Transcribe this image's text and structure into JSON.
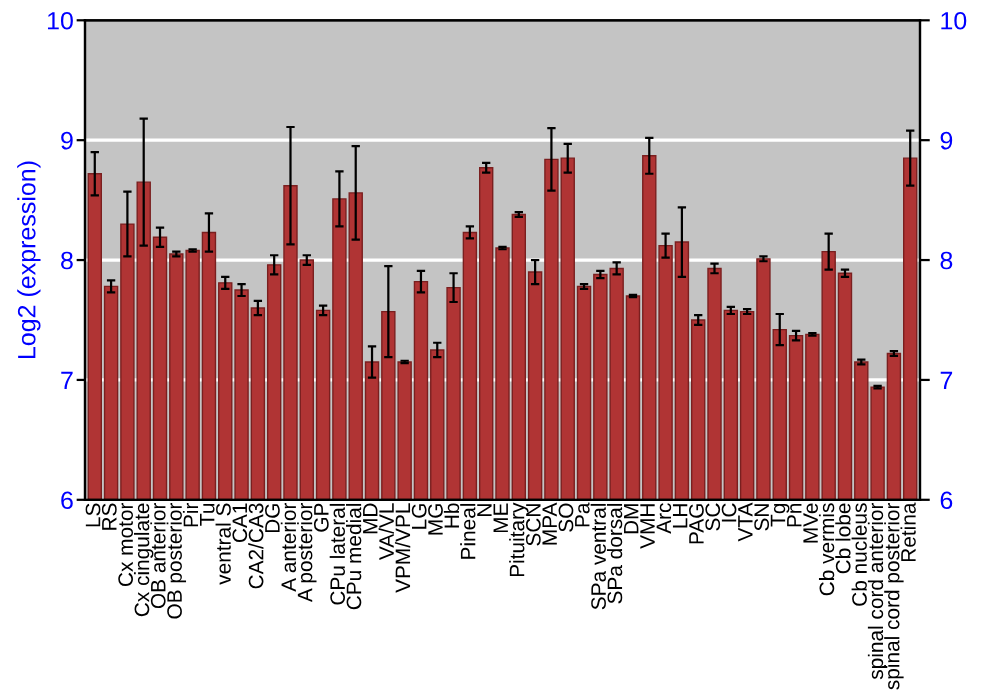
{
  "chart_data": {
    "type": "bar",
    "ylabel": "Log2 (expression)",
    "categories": [
      "LS",
      "RS",
      "Cx motor",
      "Cx cingulate",
      "OB anterior",
      "OB posterior",
      "Pir",
      "Tu",
      "ventral S",
      "CA1",
      "CA2/CA3",
      "DG",
      "A anterior",
      "A posterior",
      "GP",
      "CPu lateral",
      "CPu medial",
      "MD",
      "VA/VL",
      "VPM/VPL",
      "LG",
      "MG",
      "Hb",
      "Pineal",
      "N",
      "ME",
      "Pituitary",
      "SCN",
      "MPA",
      "SO",
      "Pa",
      "SPa ventral",
      "SPa dorsal",
      "DM",
      "VMH",
      "Arc",
      "LH",
      "PAG",
      "SC",
      "IC",
      "VTA",
      "SN",
      "Tg",
      "Pn",
      "MVe",
      "Cb vermis",
      "Cb lobe",
      "Cb nucleus",
      "spinal cord anterior",
      "spinal cord posterior",
      "Retina"
    ],
    "values": [
      8.72,
      7.78,
      8.3,
      8.65,
      8.19,
      8.05,
      8.08,
      8.23,
      7.81,
      7.75,
      7.6,
      7.96,
      8.62,
      8.0,
      7.58,
      8.51,
      8.56,
      7.15,
      7.57,
      7.15,
      7.82,
      7.25,
      7.77,
      8.23,
      8.77,
      8.1,
      8.38,
      7.9,
      8.84,
      8.85,
      7.78,
      7.88,
      7.93,
      7.7,
      8.87,
      8.12,
      8.15,
      7.5,
      7.93,
      7.58,
      7.57,
      8.01,
      7.42,
      7.37,
      7.38,
      8.07,
      7.89,
      7.15,
      6.94,
      7.22,
      8.85
    ],
    "errors": [
      0.18,
      0.05,
      0.27,
      0.53,
      0.08,
      0.02,
      0.01,
      0.16,
      0.05,
      0.05,
      0.06,
      0.08,
      0.49,
      0.04,
      0.04,
      0.23,
      0.39,
      0.13,
      0.38,
      0.01,
      0.09,
      0.06,
      0.12,
      0.05,
      0.04,
      0.01,
      0.02,
      0.1,
      0.26,
      0.12,
      0.02,
      0.03,
      0.05,
      0.01,
      0.15,
      0.1,
      0.29,
      0.04,
      0.04,
      0.03,
      0.02,
      0.02,
      0.13,
      0.04,
      0.01,
      0.15,
      0.03,
      0.02,
      0.01,
      0.02,
      0.23
    ],
    "color": "#b03434",
    "ylim": [
      6,
      10
    ],
    "yticks": [
      6,
      7,
      8,
      9,
      10
    ],
    "y2lim": [
      6,
      10
    ],
    "y2ticks": [
      6,
      7,
      8,
      9,
      10
    ],
    "grid": "y",
    "legend": false
  }
}
